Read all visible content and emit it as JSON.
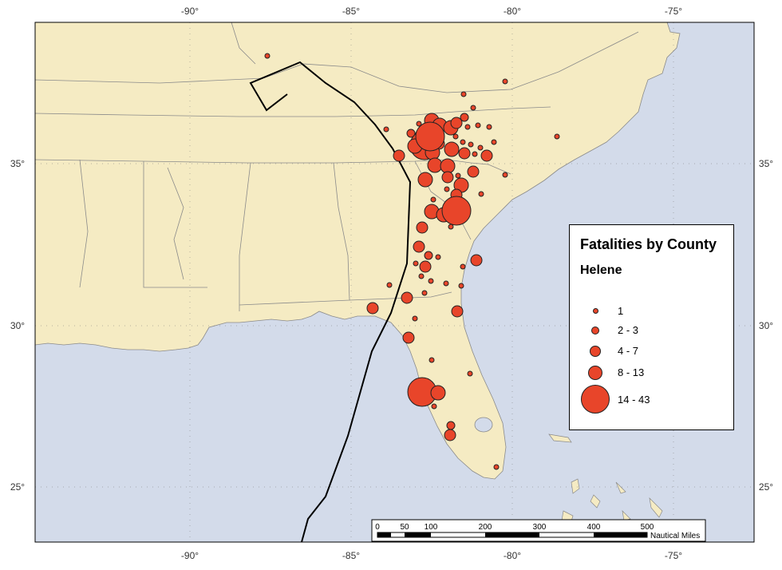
{
  "map": {
    "colors": {
      "ocean": "#d3dbea",
      "land": "#f5ebc3",
      "border": "#8a8a8a",
      "track": "#000000",
      "marker_fill": "#e8452a",
      "marker_stroke": "#222222"
    },
    "lon_ticks_top": [
      "-90°",
      "-85°",
      "-80°",
      "-75°"
    ],
    "lon_ticks_bottom": [
      "-90°",
      "-85°",
      "-80°",
      "-75°"
    ],
    "lat_ticks_left": [
      "35°",
      "30°",
      "25°"
    ],
    "lat_ticks_right": [
      "35°",
      "30°",
      "25°"
    ]
  },
  "legend": {
    "title": "Fatalities by County",
    "subtitle": "Helene",
    "classes": [
      "1",
      "2 - 3",
      "4 - 7",
      "8 - 13",
      "14 - 43"
    ]
  },
  "scale_bar": {
    "ticks": [
      "0",
      "50",
      "100",
      "200",
      "300",
      "400",
      "500"
    ],
    "unit": "Nautical Miles"
  }
}
